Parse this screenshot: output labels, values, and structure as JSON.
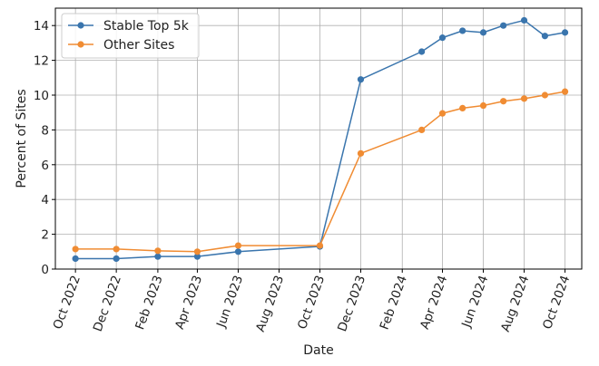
{
  "chart_data": {
    "type": "line",
    "xlabel": "Date",
    "ylabel": "Percent of Sites",
    "ylim": [
      0,
      15
    ],
    "xlim": [
      "2022-09-01",
      "2024-10-26"
    ],
    "grid": true,
    "legend_position": "top-left",
    "x_ticks": [
      {
        "date": "2022-10-01",
        "label": "Oct 2022"
      },
      {
        "date": "2022-12-01",
        "label": "Dec 2022"
      },
      {
        "date": "2023-02-01",
        "label": "Feb 2023"
      },
      {
        "date": "2023-04-01",
        "label": "Apr 2023"
      },
      {
        "date": "2023-06-01",
        "label": "Jun 2023"
      },
      {
        "date": "2023-08-01",
        "label": "Aug 2023"
      },
      {
        "date": "2023-10-01",
        "label": "Oct 2023"
      },
      {
        "date": "2023-12-01",
        "label": "Dec 2023"
      },
      {
        "date": "2024-02-01",
        "label": "Feb 2024"
      },
      {
        "date": "2024-04-01",
        "label": "Apr 2024"
      },
      {
        "date": "2024-06-01",
        "label": "Jun 2024"
      },
      {
        "date": "2024-08-01",
        "label": "Aug 2024"
      },
      {
        "date": "2024-10-01",
        "label": "Oct 2024"
      }
    ],
    "y_ticks": [
      0,
      2,
      4,
      6,
      8,
      10,
      12,
      14
    ],
    "series": [
      {
        "name": "Stable Top 5k",
        "color": "#3a75ad",
        "points": [
          {
            "x": "2022-10-01",
            "y": 0.6
          },
          {
            "x": "2022-12-01",
            "y": 0.6
          },
          {
            "x": "2023-02-01",
            "y": 0.72
          },
          {
            "x": "2023-04-01",
            "y": 0.72
          },
          {
            "x": "2023-06-01",
            "y": 1.0
          },
          {
            "x": "2023-10-01",
            "y": 1.3
          },
          {
            "x": "2023-12-01",
            "y": 10.9
          },
          {
            "x": "2024-03-01",
            "y": 12.5
          },
          {
            "x": "2024-04-01",
            "y": 13.3
          },
          {
            "x": "2024-05-01",
            "y": 13.7
          },
          {
            "x": "2024-06-01",
            "y": 13.6
          },
          {
            "x": "2024-07-01",
            "y": 14.0
          },
          {
            "x": "2024-08-01",
            "y": 14.3
          },
          {
            "x": "2024-09-01",
            "y": 13.4
          },
          {
            "x": "2024-10-01",
            "y": 13.6
          }
        ]
      },
      {
        "name": "Other Sites",
        "color": "#f08c33",
        "points": [
          {
            "x": "2022-10-01",
            "y": 1.15
          },
          {
            "x": "2022-12-01",
            "y": 1.15
          },
          {
            "x": "2023-02-01",
            "y": 1.05
          },
          {
            "x": "2023-04-01",
            "y": 1.0
          },
          {
            "x": "2023-06-01",
            "y": 1.35
          },
          {
            "x": "2023-10-01",
            "y": 1.35
          },
          {
            "x": "2023-12-01",
            "y": 6.65
          },
          {
            "x": "2024-03-01",
            "y": 8.0
          },
          {
            "x": "2024-04-01",
            "y": 8.95
          },
          {
            "x": "2024-05-01",
            "y": 9.25
          },
          {
            "x": "2024-06-01",
            "y": 9.4
          },
          {
            "x": "2024-07-01",
            "y": 9.65
          },
          {
            "x": "2024-08-01",
            "y": 9.8
          },
          {
            "x": "2024-09-01",
            "y": 10.0
          },
          {
            "x": "2024-10-01",
            "y": 10.2
          }
        ]
      }
    ]
  }
}
